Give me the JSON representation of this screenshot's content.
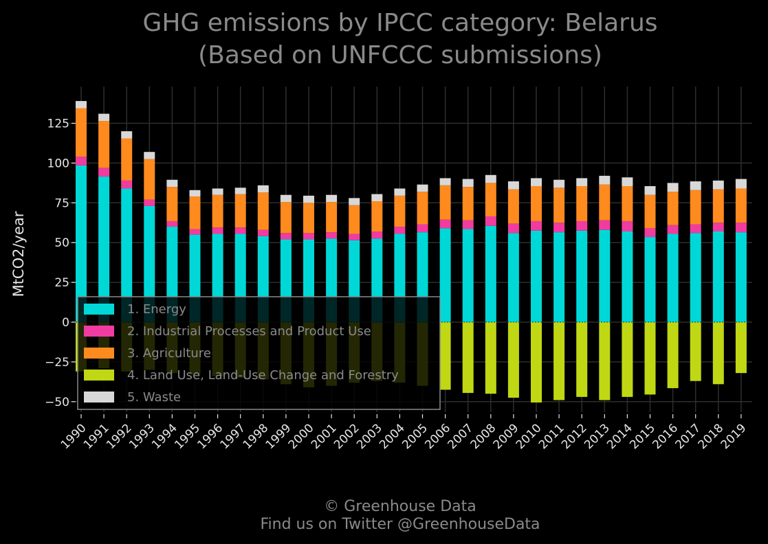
{
  "chart_data": {
    "type": "bar",
    "stacked": true,
    "title": "GHG emissions by IPCC category: Belarus",
    "subtitle": "(Based on UNFCCC submissions)",
    "xlabel": "",
    "ylabel": "MtCO2/year",
    "ylim": [
      -55,
      145
    ],
    "yticks": [
      -50,
      -25,
      0,
      25,
      50,
      75,
      100,
      125
    ],
    "ytick_labels": [
      "−50",
      "−25",
      "0",
      "25",
      "50",
      "75",
      "100",
      "125"
    ],
    "grid": true,
    "legend_position": "lower-left",
    "categories": [
      "1990",
      "1991",
      "1992",
      "1993",
      "1994",
      "1995",
      "1996",
      "1997",
      "1998",
      "1999",
      "2000",
      "2001",
      "2002",
      "2003",
      "2004",
      "2005",
      "2006",
      "2007",
      "2008",
      "2009",
      "2010",
      "2011",
      "2012",
      "2013",
      "2014",
      "2015",
      "2016",
      "2017",
      "2018",
      "2019"
    ],
    "series": [
      {
        "name": "1. Energy",
        "color": "#00d8d8",
        "values": [
          98.5,
          91.5,
          84,
          73,
          60,
          55,
          55.5,
          55.5,
          54,
          52,
          52,
          52.5,
          51.5,
          52.5,
          55.5,
          56.5,
          59,
          58.5,
          60.5,
          56,
          57.5,
          56.5,
          57.5,
          58,
          57,
          53.5,
          55.5,
          56,
          57,
          56.5
        ]
      },
      {
        "name": "2. Industrial Processes and Product Use",
        "color": "#f03ca0",
        "values": [
          5.5,
          5.5,
          5,
          4,
          3.5,
          3.5,
          4,
          4,
          4,
          4,
          4,
          4,
          4,
          4.5,
          4.5,
          5,
          5.5,
          5.5,
          6,
          6,
          6,
          6,
          6,
          6,
          6.5,
          5.5,
          5.5,
          5.5,
          5.5,
          6
        ]
      },
      {
        "name": "3. Agriculture",
        "color": "#ff8a1e",
        "values": [
          30.5,
          29.5,
          26.5,
          25.5,
          21.5,
          20.5,
          20.5,
          21,
          23.5,
          19.5,
          19,
          19,
          18,
          19,
          19.5,
          20.5,
          21.5,
          21,
          21,
          21.5,
          22,
          22,
          22,
          22.5,
          22,
          21,
          21,
          21.5,
          21,
          21.5
        ]
      },
      {
        "name": "4. Land Use, Land-Use Change and Forestry",
        "color": "#c0d814",
        "values": [
          -31,
          -29,
          -31,
          -30,
          -32,
          -33,
          -34,
          -35,
          -36,
          -39,
          -41,
          -40,
          -38,
          -37,
          -38,
          -40,
          -42.5,
          -44.5,
          -45,
          -47.5,
          -50.5,
          -49,
          -47,
          -49,
          -47,
          -45.5,
          -41.5,
          -37,
          -39,
          -32
        ]
      },
      {
        "name": "5. Waste",
        "color": "#d8d8d8",
        "values": [
          4.5,
          4.5,
          4.5,
          4.5,
          4.5,
          4,
          4,
          4,
          4.5,
          4.5,
          4.5,
          4.5,
          4.5,
          4.5,
          4.5,
          4.5,
          4.5,
          5,
          5,
          5,
          5,
          5,
          5,
          5.5,
          5.5,
          5.5,
          5.5,
          5.5,
          5.5,
          6
        ]
      }
    ]
  },
  "credit": {
    "line1": "© Greenhouse Data",
    "line2": "Find us on Twitter @GreenhouseData"
  }
}
